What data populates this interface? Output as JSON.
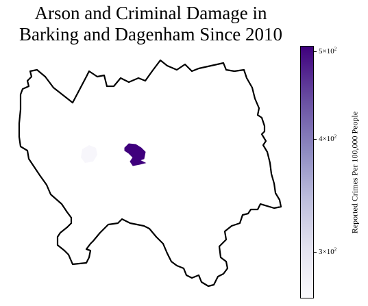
{
  "title": {
    "line1": "Arson and Criminal Damage in",
    "line2": "Barking and Dagenham Since 2010"
  },
  "colorbar": {
    "label": "Reported Crimes Per 100,000 People",
    "colormap": "Purples",
    "scale": "log",
    "ticks": [
      {
        "base": "3",
        "mult": "×10",
        "exp": "2",
        "value": 300
      },
      {
        "base": "4",
        "mult": "×10",
        "exp": "2",
        "value": 400
      },
      {
        "base": "5",
        "mult": "×10",
        "exp": "2",
        "value": 500
      }
    ]
  },
  "map": {
    "boundary_color": "#000000",
    "wards": [
      {
        "name": "high-crime-ward",
        "color": "#3f007d",
        "value": 505
      },
      {
        "name": "low-crime-ward",
        "color": "#f7f6fb",
        "value": 265
      }
    ]
  }
}
